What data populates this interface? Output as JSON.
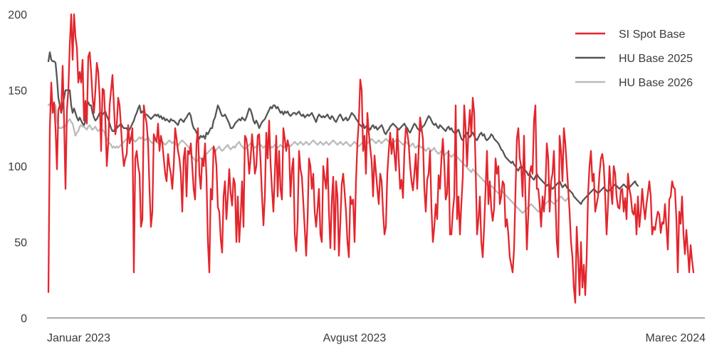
{
  "chart_data": {
    "type": "line",
    "title": "",
    "xlabel": "",
    "ylabel": "",
    "ylim": [
      0,
      200
    ],
    "y_ticks": [
      0,
      50,
      100,
      150,
      200
    ],
    "x_ticks": [
      "Januar 2023",
      "Avgust 2023",
      "Marec 2024"
    ],
    "x_tick_positions": [
      0,
      215,
      455
    ],
    "x_range": [
      0,
      460
    ],
    "grid": false,
    "legend_position": "top-right",
    "series": [
      {
        "name": "SI Spot Base",
        "color": "#e3262d",
        "values": [
          17,
          125,
          155,
          135,
          142,
          125,
          98,
          137,
          140,
          136,
          166,
          130,
          85,
          137,
          150,
          180,
          200,
          170,
          200,
          185,
          178,
          155,
          162,
          155,
          170,
          130,
          143,
          128,
          172,
          175,
          162,
          145,
          135,
          150,
          168,
          162,
          145,
          110,
          151,
          150,
          130,
          100,
          115,
          140,
          150,
          160,
          140,
          121,
          127,
          145,
          140,
          125,
          110,
          100,
          105,
          108,
          127,
          115,
          118,
          125,
          30,
          105,
          110,
          100,
          95,
          60,
          65,
          140,
          133,
          128,
          115,
          85,
          60,
          70,
          121,
          118,
          116,
          128,
          110,
          120,
          115,
          105,
          95,
          90,
          108,
          100,
          95,
          85,
          100,
          125,
          118,
          110,
          105,
          95,
          70,
          105,
          112,
          80,
          110,
          108,
          115,
          100,
          85,
          78,
          115,
          125,
          95,
          85,
          105,
          100,
          115,
          93,
          50,
          30,
          85,
          78,
          113,
          110,
          100,
          73,
          70,
          52,
          43,
          80,
          90,
          65,
          80,
          98,
          82,
          74,
          92,
          88,
          50,
          80,
          50,
          67,
          90,
          60,
          120,
          118,
          110,
          95,
          105,
          121,
          110,
          95,
          100,
          120,
          121,
          103,
          80,
          61,
          80,
          122,
          105,
          130,
          102,
          85,
          70,
          95,
          120,
          80,
          110,
          85,
          78,
          125,
          118,
          110,
          117,
          112,
          80,
          98,
          105,
          55,
          44,
          64,
          110,
          98,
          93,
          76,
          59,
          41,
          65,
          105,
          100,
          85,
          95,
          70,
          60,
          72,
          85,
          55,
          50,
          100,
          92,
          85,
          105,
          70,
          46,
          77,
          93,
          45,
          90,
          80,
          41,
          63,
          88,
          95,
          83,
          70,
          50,
          40,
          80,
          75,
          78,
          50,
          90,
          115,
          130,
          157,
          150,
          110,
          120,
          95,
          135,
          122,
          112,
          103,
          80,
          107,
          96,
          85,
          75,
          95,
          90,
          70,
          55,
          60,
          95,
          110,
          122,
          108,
          118,
          108,
          97,
          125,
          105,
          85,
          91,
          79,
          110,
          125,
          122,
          115,
          100,
          90,
          84,
          95,
          108,
          85,
          110,
          132,
          125,
          118,
          85,
          70,
          91,
          95,
          110,
          72,
          50,
          60,
          75,
          65,
          94,
          85,
          105,
          118,
          102,
          78,
          82,
          110,
          55,
          55,
          70,
          80,
          140,
          65,
          80,
          55,
          75,
          93,
          140,
          125,
          100,
          123,
          137,
          120,
          145,
          135,
          100,
          55,
          65,
          80,
          50,
          40,
          60,
          85,
          110,
          75,
          90,
          72,
          64,
          72,
          105,
          95,
          100,
          75,
          80,
          90,
          88,
          60,
          65,
          55,
          40,
          35,
          30,
          45,
          83,
          118,
          125,
          105,
          100,
          80,
          120,
          80,
          45,
          68,
          95,
          100,
          95,
          130,
          140,
          85,
          85,
          75,
          60,
          80,
          70,
          85,
          115,
          105,
          70,
          90,
          95,
          110,
          80,
          50,
          40,
          120,
          110,
          90,
          125,
          115,
          100,
          85,
          70,
          50,
          40,
          20,
          10,
          60,
          40,
          15,
          50,
          20,
          35,
          15,
          40,
          82,
          100,
          110,
          90,
          95,
          70,
          75,
          80,
          95,
          105,
          108,
          100,
          80,
          55,
          75,
          100,
          85,
          75,
          100,
          95,
          80,
          73,
          72,
          84,
          85,
          70,
          79,
          65,
          95,
          85,
          80,
          70,
          68,
          75,
          55,
          80,
          60,
          70,
          85,
          74,
          65,
          75,
          82,
          90,
          80,
          55,
          60,
          58,
          65,
          70,
          68,
          56,
          63,
          62,
          75,
          60,
          45,
          78,
          80,
          90,
          86,
          85,
          65,
          30,
          70,
          62,
          80,
          55,
          42,
          58,
          45,
          30,
          48,
          38,
          30
        ]
      },
      {
        "name": "HU Base 2025",
        "color": "#555555",
        "values": [
          169,
          175,
          170,
          169,
          169,
          168,
          158,
          145,
          140,
          135,
          140,
          145,
          150,
          150,
          150,
          150,
          140,
          135,
          138,
          135,
          132,
          130,
          132,
          130,
          128,
          127,
          130,
          140,
          142,
          140,
          140,
          135,
          132,
          130,
          131,
          133,
          135,
          135,
          134,
          135,
          136,
          133,
          131,
          128,
          125,
          123,
          123,
          125,
          125,
          126,
          127,
          128,
          126,
          125,
          125,
          125,
          123,
          124,
          126,
          128,
          130,
          133,
          135,
          138,
          140,
          135,
          136,
          135,
          134,
          134,
          133,
          132,
          131,
          132,
          133,
          134,
          133,
          134,
          132,
          133,
          131,
          132,
          130,
          131,
          130,
          129,
          131,
          130,
          130,
          129,
          128,
          127,
          130,
          131,
          130,
          129,
          131,
          132,
          134,
          135,
          133,
          128,
          125,
          124,
          122,
          120,
          118,
          120,
          119,
          120,
          118,
          122,
          121,
          123,
          125,
          125,
          130,
          132,
          136,
          140,
          138,
          135,
          133,
          133,
          134,
          132,
          130,
          128,
          125,
          125,
          126,
          128,
          129,
          130,
          131,
          130,
          132,
          131,
          130,
          132,
          135,
          138,
          137,
          134,
          130,
          128,
          130,
          128,
          125,
          127,
          129,
          130,
          131,
          133,
          135,
          137,
          139,
          138,
          140,
          140,
          138,
          139,
          137,
          135,
          136,
          134,
          136,
          135,
          136,
          134,
          133,
          134,
          135,
          135,
          134,
          135,
          136,
          134,
          133,
          134,
          132,
          133,
          134,
          133,
          134,
          135,
          133,
          131,
          129,
          132,
          134,
          133,
          132,
          133,
          132,
          133,
          134,
          132,
          131,
          133,
          132,
          130,
          129,
          131,
          133,
          134,
          132,
          130,
          131,
          132,
          130,
          131,
          133,
          135,
          134,
          133,
          131,
          130,
          128,
          127,
          126,
          128,
          125,
          126,
          127,
          125,
          124,
          126,
          127,
          125,
          126,
          124,
          125,
          126,
          127,
          125,
          122,
          121,
          123,
          124,
          126,
          127,
          128,
          127,
          126,
          125,
          124,
          125,
          126,
          127,
          128,
          126,
          125,
          123,
          122,
          124,
          126,
          128,
          127,
          125,
          124,
          123,
          125,
          126,
          127,
          129,
          131,
          133,
          132,
          130,
          128,
          127,
          128,
          126,
          125,
          127,
          126,
          125,
          124,
          123,
          125,
          126,
          124,
          125,
          123,
          122,
          121,
          123,
          124,
          121,
          118,
          117,
          119,
          121,
          122,
          120,
          119,
          121,
          122,
          120,
          118,
          117,
          119,
          121,
          122,
          120,
          121,
          118,
          117,
          118,
          119,
          121,
          120,
          118,
          117,
          116,
          115,
          113,
          111,
          110,
          108,
          106,
          105,
          104,
          103,
          102,
          103,
          101,
          100,
          98,
          97,
          99,
          100,
          99,
          98,
          97,
          96,
          94,
          95,
          93,
          92,
          91,
          93,
          95,
          93,
          92,
          91,
          90,
          89,
          88,
          87,
          88,
          87,
          86,
          85,
          86,
          87,
          88,
          89,
          90,
          88,
          86,
          87,
          88,
          86,
          85,
          84,
          83,
          82,
          80,
          79,
          78,
          77,
          76,
          75,
          77,
          78,
          79,
          80,
          81,
          82,
          83,
          84,
          85,
          84,
          83,
          82,
          83,
          84,
          85,
          86,
          85,
          84,
          83,
          84,
          85,
          86,
          87,
          88,
          87,
          86,
          85,
          86,
          87,
          88,
          87,
          86,
          85,
          86,
          87,
          88,
          89,
          90,
          88,
          87
        ]
      },
      {
        "name": "HU Base 2026",
        "color": "#bbbbbb",
        "values": [
          140,
          141,
          142,
          140,
          141,
          140,
          130,
          126,
          125,
          125,
          126,
          125,
          127,
          128,
          130,
          131,
          129,
          128,
          124,
          120,
          122,
          123,
          126,
          127,
          126,
          126,
          125,
          124,
          126,
          127,
          125,
          124,
          125,
          126,
          124,
          123,
          124,
          125,
          124,
          123,
          120,
          118,
          116,
          115,
          114,
          112,
          113,
          112,
          113,
          112,
          113,
          114,
          115,
          116,
          117,
          118,
          119,
          118,
          119,
          118,
          117,
          116,
          117,
          118,
          119,
          118,
          119,
          118,
          117,
          118,
          119,
          117,
          116,
          115,
          116,
          117,
          116,
          115,
          116,
          117,
          116,
          115,
          114,
          115,
          116,
          117,
          116,
          115,
          116,
          115,
          114,
          113,
          115,
          116,
          117,
          116,
          115,
          114,
          113,
          112,
          108,
          106,
          105,
          104,
          103,
          104,
          106,
          105,
          104,
          106,
          107,
          108,
          109,
          110,
          111,
          112,
          110,
          109,
          111,
          112,
          113,
          111,
          110,
          111,
          112,
          113,
          114,
          112,
          111,
          112,
          113,
          112,
          114,
          115,
          116,
          114,
          113,
          112,
          111,
          112,
          113,
          114,
          115,
          114,
          113,
          112,
          113,
          114,
          115,
          114,
          113,
          112,
          113,
          114,
          113,
          112,
          113,
          112,
          113,
          114,
          113,
          112,
          113,
          114,
          113,
          112,
          113,
          114,
          115,
          114,
          113,
          114,
          115,
          116,
          115,
          114,
          115,
          116,
          115,
          114,
          115,
          116,
          115,
          114,
          115,
          116,
          117,
          116,
          115,
          114,
          115,
          116,
          115,
          114,
          115,
          116,
          115,
          114,
          115,
          116,
          117,
          116,
          115,
          114,
          115,
          116,
          115,
          114,
          115,
          116,
          115,
          114,
          113,
          114,
          115,
          116,
          115,
          114,
          113,
          114,
          115,
          116,
          117,
          116,
          115,
          116,
          117,
          118,
          117,
          116,
          115,
          116,
          117,
          116,
          115,
          116,
          117,
          118,
          117,
          116,
          115,
          114,
          115,
          116,
          117,
          118,
          117,
          116,
          115,
          114,
          115,
          116,
          115,
          114,
          113,
          114,
          115,
          113,
          112,
          113,
          114,
          113,
          112,
          113,
          111,
          110,
          111,
          112,
          111,
          110,
          111,
          112,
          110,
          109,
          108,
          109,
          110,
          108,
          107,
          108,
          109,
          108,
          107,
          106,
          107,
          108,
          107,
          106,
          105,
          104,
          103,
          102,
          101,
          100,
          99,
          98,
          97,
          96,
          98,
          97,
          96,
          95,
          94,
          93,
          92,
          91,
          90,
          89,
          88,
          87,
          86,
          87,
          86,
          85,
          84,
          83,
          82,
          83,
          84,
          83,
          82,
          81,
          80,
          79,
          78,
          77,
          76,
          75,
          74,
          73,
          72,
          71,
          70,
          69,
          70,
          71,
          72,
          73,
          74,
          75,
          74,
          73,
          72,
          71,
          70,
          71,
          72,
          73,
          74,
          75,
          76,
          77,
          78,
          77,
          76,
          75,
          76,
          77,
          78,
          79,
          80,
          79,
          78,
          77,
          78,
          79
        ]
      }
    ]
  }
}
